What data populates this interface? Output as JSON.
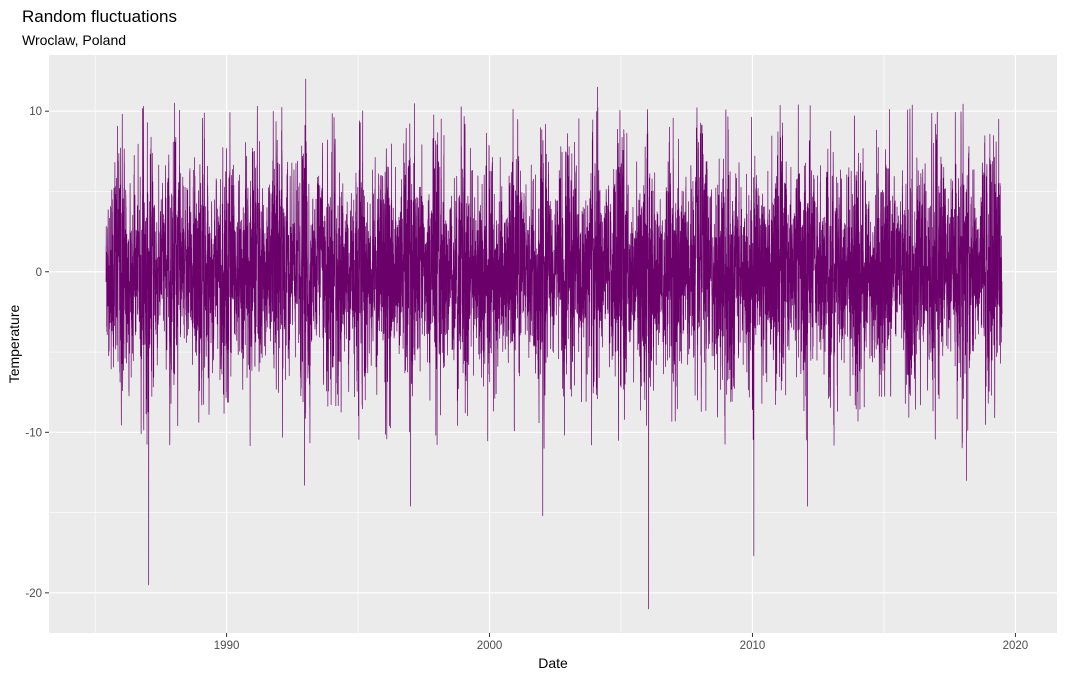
{
  "chart_data": {
    "type": "line",
    "title": "Random fluctuations",
    "subtitle": "Wroclaw, Poland",
    "xlabel": "Date",
    "ylabel": "Temperature",
    "x_range": [
      "1983-04-01",
      "2021-08-01"
    ],
    "ylim": [
      -22.5,
      13.5
    ],
    "x_ticks": [
      "1990",
      "2000",
      "2010",
      "2020"
    ],
    "y_ticks": [
      "10",
      "0",
      "-10",
      "-20"
    ],
    "y_tick_values": [
      10,
      0,
      -10,
      -20
    ],
    "x_tick_years": [
      1990,
      2000,
      2010,
      2020
    ],
    "series_color": "#6B006B",
    "panel_background": "#EBEBEB",
    "grid_color": "#FFFFFF",
    "grid": true,
    "legend": "none",
    "series": [
      {
        "start": "1985-06-01",
        "end": "2019-06-30",
        "values_sampled_monthly_range": "approximately -8 to +8",
        "notable_points": [
          {
            "x": "1987-01-15",
            "y": -19.5
          },
          {
            "x": "1988-01-10",
            "y": 10.5
          },
          {
            "x": "1993-01-05",
            "y": 12.0
          },
          {
            "x": "1992-12-20",
            "y": -13.3
          },
          {
            "x": "1997-01-01",
            "y": -14.6
          },
          {
            "x": "2002-01-10",
            "y": -15.2
          },
          {
            "x": "2004-02-10",
            "y": 11.5
          },
          {
            "x": "2006-01-20",
            "y": -21.0
          },
          {
            "x": "2010-01-20",
            "y": -17.7
          },
          {
            "x": "2012-02-05",
            "y": -14.6
          },
          {
            "x": "2018-02-20",
            "y": -13.0
          },
          {
            "x": "2019-05-15",
            "y": 9.5
          }
        ]
      }
    ]
  }
}
